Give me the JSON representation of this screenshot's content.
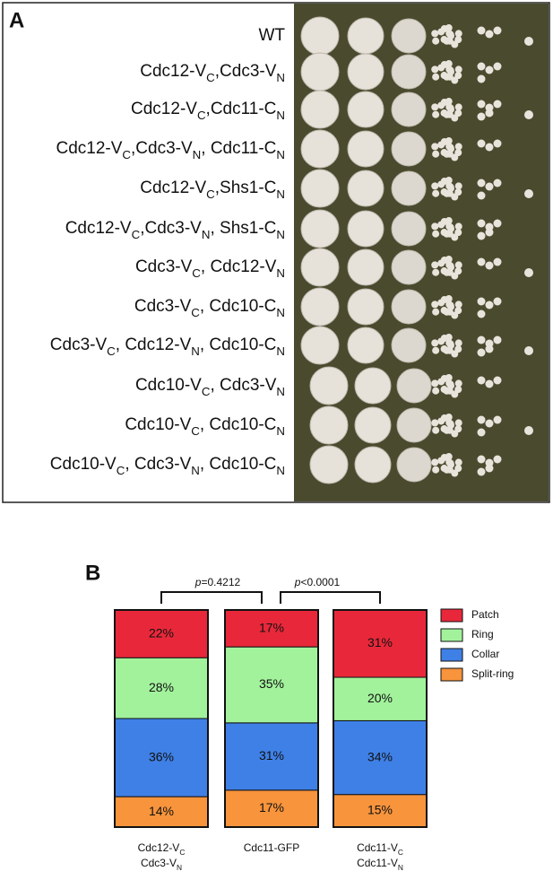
{
  "panel_a": {
    "label": "A",
    "strains": [
      [
        "WT"
      ],
      [
        "Cdc12-V",
        "C",
        ",Cdc3-V",
        "N"
      ],
      [
        "Cdc12-V",
        "C",
        ",Cdc11-C",
        "N"
      ],
      [
        "Cdc12-V",
        "C",
        ",Cdc3-V",
        "N",
        ", Cdc11-C",
        "N"
      ],
      [
        "Cdc12-V",
        "C",
        ",Shs1-C",
        "N"
      ],
      [
        "Cdc12-V",
        "C",
        ",Cdc3-V",
        "N",
        ", Shs1-C",
        "N"
      ],
      [
        "Cdc3-V",
        "C",
        ", Cdc12-V",
        "N"
      ],
      [
        "Cdc3-V",
        "C",
        ", Cdc10-C",
        "N"
      ],
      [
        "Cdc3-V",
        "C",
        ", Cdc12-V",
        "N",
        ", Cdc10-C",
        "N"
      ],
      [
        "Cdc10-V",
        "C",
        ", Cdc3-V",
        "N"
      ],
      [
        "Cdc10-V",
        "C",
        ", Cdc10-C",
        "N"
      ],
      [
        "Cdc10-V",
        "C",
        ", Cdc3-V",
        "N",
        ", Cdc10-C",
        "N"
      ]
    ]
  },
  "chart_data": {
    "type": "stacked_bar",
    "label": "B",
    "categories": [
      [
        [
          "Cdc12-V",
          "C"
        ],
        [
          "Cdc3-V",
          "N"
        ]
      ],
      [
        [
          "Cdc11-GFP"
        ]
      ],
      [
        [
          "Cdc11-V",
          "C"
        ],
        [
          "Cdc11-V",
          "N"
        ]
      ]
    ],
    "series": [
      {
        "name": "Patch",
        "color": "#e8283a",
        "values": [
          22,
          17,
          31
        ],
        "value_labels": [
          "22%",
          "17%",
          "31%"
        ]
      },
      {
        "name": "Ring",
        "color": "#a2f29c",
        "values": [
          28,
          35,
          20
        ],
        "value_labels": [
          "28%",
          "35%",
          "20%"
        ]
      },
      {
        "name": "Collar",
        "color": "#3f80e6",
        "values": [
          36,
          31,
          34
        ],
        "value_labels": [
          "36%",
          "31%",
          "34%"
        ]
      },
      {
        "name": "Split-ring",
        "color": "#f7943c",
        "values": [
          14,
          17,
          15
        ],
        "value_labels": [
          "14%",
          "17%",
          "15%"
        ]
      }
    ],
    "ylim": [
      0,
      100
    ],
    "annotations": [
      [
        "p",
        "=0.4212"
      ],
      [
        "p",
        "<0.0001"
      ]
    ],
    "legend": "right"
  }
}
